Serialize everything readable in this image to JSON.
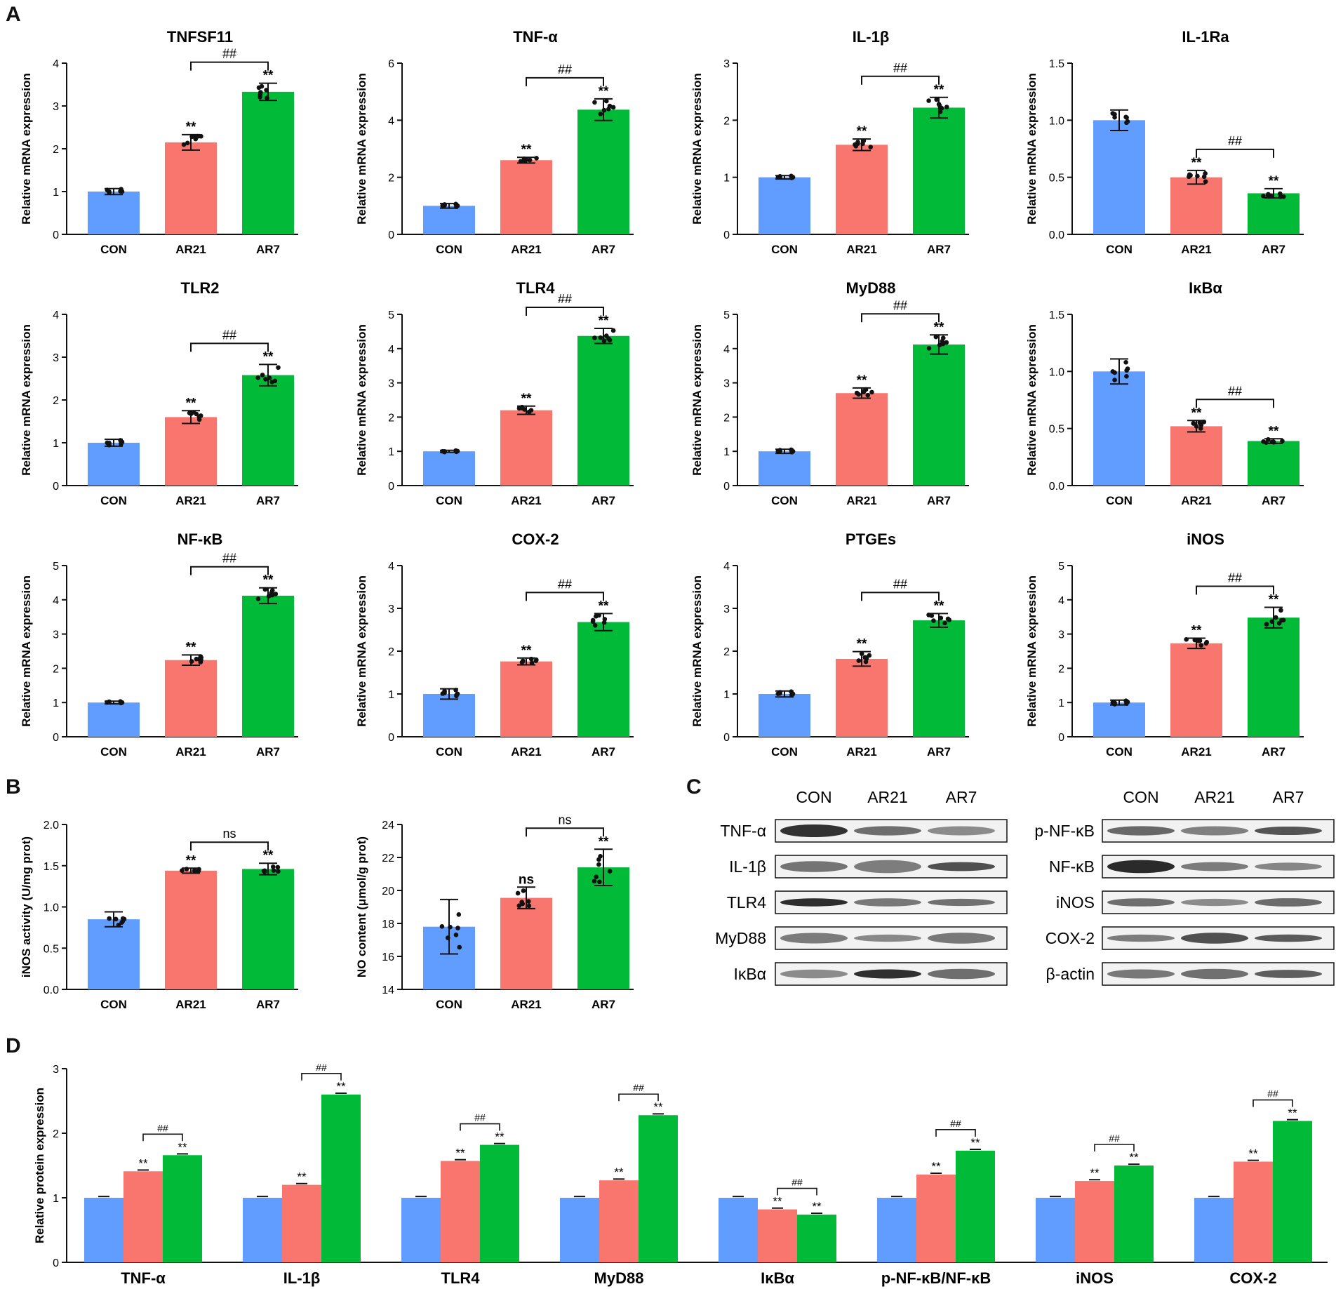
{
  "figure": {
    "panel_labels": {
      "a": "A",
      "b": "B",
      "c": "C",
      "d": "D"
    },
    "colors": {
      "CON": "#619cff",
      "AR21": "#f8766d",
      "AR7": "#00ba38",
      "axis": "#111111",
      "dot": "#111111"
    },
    "groups": [
      "CON",
      "AR21",
      "AR7"
    ],
    "ylabel_mrna": "Relative mRNA expression",
    "significance": {
      "double_star": "**",
      "double_hash": "##",
      "ns": "ns"
    }
  },
  "chart_data": [
    {
      "id": "TNFSF11",
      "type": "bar",
      "title": "TNFSF11",
      "ylabel": "Relative mRNA expression",
      "categories": [
        "CON",
        "AR21",
        "AR7"
      ],
      "values": [
        1.0,
        2.15,
        3.33
      ],
      "errors": [
        0.07,
        0.18,
        0.2
      ],
      "ylim": [
        0,
        4
      ],
      "ticks": [
        "0",
        "1",
        "2",
        "3",
        "4"
      ],
      "stars": [
        "",
        "**",
        "**"
      ],
      "bracket": {
        "from": 1,
        "to": 2,
        "label": "##"
      }
    },
    {
      "id": "TNF-a",
      "type": "bar",
      "title": "TNF-α",
      "ylabel": "Relative mRNA expression",
      "categories": [
        "CON",
        "AR21",
        "AR7"
      ],
      "values": [
        1.0,
        2.6,
        4.37
      ],
      "errors": [
        0.08,
        0.1,
        0.38
      ],
      "ylim": [
        0,
        6
      ],
      "ticks": [
        "0",
        "2",
        "4",
        "6"
      ],
      "stars": [
        "",
        "**",
        "**"
      ],
      "bracket": {
        "from": 1,
        "to": 2,
        "label": "##"
      }
    },
    {
      "id": "IL-1b",
      "type": "bar",
      "title": "IL-1β",
      "ylabel": "Relative mRNA expression",
      "categories": [
        "CON",
        "AR21",
        "AR7"
      ],
      "values": [
        1.0,
        1.57,
        2.22
      ],
      "errors": [
        0.03,
        0.1,
        0.18
      ],
      "ylim": [
        0,
        3
      ],
      "ticks": [
        "0",
        "1",
        "2",
        "3"
      ],
      "stars": [
        "",
        "**",
        "**"
      ],
      "bracket": {
        "from": 1,
        "to": 2,
        "label": "##"
      }
    },
    {
      "id": "IL-1Ra",
      "type": "bar",
      "title": "IL-1Ra",
      "ylabel": "Relative mRNA expression",
      "categories": [
        "CON",
        "AR21",
        "AR7"
      ],
      "values": [
        1.0,
        0.5,
        0.36
      ],
      "errors": [
        0.09,
        0.06,
        0.04
      ],
      "ylim": [
        0,
        1.5
      ],
      "ticks": [
        "0.0",
        "0.5",
        "1.0",
        "1.5"
      ],
      "stars": [
        "",
        "**",
        "**"
      ],
      "bracket": {
        "from": 1,
        "to": 2,
        "label": "##"
      }
    },
    {
      "id": "TLR2",
      "type": "bar",
      "title": "TLR2",
      "ylabel": "Relative mRNA expression",
      "categories": [
        "CON",
        "AR21",
        "AR7"
      ],
      "values": [
        1.0,
        1.6,
        2.58
      ],
      "errors": [
        0.08,
        0.15,
        0.25
      ],
      "ylim": [
        0,
        4
      ],
      "ticks": [
        "0",
        "1",
        "2",
        "3",
        "4"
      ],
      "stars": [
        "",
        "**",
        "**"
      ],
      "bracket": {
        "from": 1,
        "to": 2,
        "label": "##"
      }
    },
    {
      "id": "TLR4",
      "type": "bar",
      "title": "TLR4",
      "ylabel": "Relative mRNA expression",
      "categories": [
        "CON",
        "AR21",
        "AR7"
      ],
      "values": [
        1.0,
        2.2,
        4.37
      ],
      "errors": [
        0.03,
        0.12,
        0.22
      ],
      "ylim": [
        0,
        5
      ],
      "ticks": [
        "0",
        "1",
        "2",
        "3",
        "4",
        "5"
      ],
      "stars": [
        "",
        "**",
        "**"
      ],
      "bracket": {
        "from": 1,
        "to": 2,
        "label": "##"
      }
    },
    {
      "id": "MyD88",
      "type": "bar",
      "title": "MyD88",
      "ylabel": "Relative mRNA expression",
      "categories": [
        "CON",
        "AR21",
        "AR7"
      ],
      "values": [
        1.0,
        2.7,
        4.12
      ],
      "errors": [
        0.06,
        0.15,
        0.28
      ],
      "ylim": [
        0,
        5
      ],
      "ticks": [
        "0",
        "1",
        "2",
        "3",
        "4",
        "5"
      ],
      "stars": [
        "",
        "**",
        "**"
      ],
      "bracket": {
        "from": 1,
        "to": 2,
        "label": "##"
      }
    },
    {
      "id": "IkBa",
      "type": "bar",
      "title": "IκBα",
      "ylabel": "Relative mRNA expression",
      "categories": [
        "CON",
        "AR21",
        "AR7"
      ],
      "values": [
        1.0,
        0.52,
        0.39
      ],
      "errors": [
        0.11,
        0.05,
        0.02
      ],
      "ylim": [
        0,
        1.5
      ],
      "ticks": [
        "0.0",
        "0.5",
        "1.0",
        "1.5"
      ],
      "stars": [
        "",
        "**",
        "**"
      ],
      "bracket": {
        "from": 1,
        "to": 2,
        "label": "##"
      }
    },
    {
      "id": "NF-kB",
      "type": "bar",
      "title": "NF-κB",
      "ylabel": "Relative mRNA expression",
      "categories": [
        "CON",
        "AR21",
        "AR7"
      ],
      "values": [
        1.0,
        2.24,
        4.12
      ],
      "errors": [
        0.04,
        0.15,
        0.23
      ],
      "ylim": [
        0,
        5
      ],
      "ticks": [
        "0",
        "1",
        "2",
        "3",
        "4",
        "5"
      ],
      "stars": [
        "",
        "**",
        "**"
      ],
      "bracket": {
        "from": 1,
        "to": 2,
        "label": "##"
      }
    },
    {
      "id": "COX-2",
      "type": "bar",
      "title": "COX-2",
      "ylabel": "Relative mRNA expression",
      "categories": [
        "CON",
        "AR21",
        "AR7"
      ],
      "values": [
        1.0,
        1.76,
        2.68
      ],
      "errors": [
        0.12,
        0.08,
        0.2
      ],
      "ylim": [
        0,
        4
      ],
      "ticks": [
        "0",
        "1",
        "2",
        "3",
        "4"
      ],
      "stars": [
        "",
        "**",
        "**"
      ],
      "bracket": {
        "from": 1,
        "to": 2,
        "label": "##"
      }
    },
    {
      "id": "PTGEs",
      "type": "bar",
      "title": "PTGEs",
      "ylabel": "Relative mRNA expression",
      "categories": [
        "CON",
        "AR21",
        "AR7"
      ],
      "values": [
        1.0,
        1.82,
        2.72
      ],
      "errors": [
        0.07,
        0.17,
        0.16
      ],
      "ylim": [
        0,
        4
      ],
      "ticks": [
        "0",
        "1",
        "2",
        "3",
        "4"
      ],
      "stars": [
        "",
        "**",
        "**"
      ],
      "bracket": {
        "from": 1,
        "to": 2,
        "label": "##"
      }
    },
    {
      "id": "iNOS",
      "type": "bar",
      "title": "iNOS",
      "ylabel": "Relative mRNA expression",
      "categories": [
        "CON",
        "AR21",
        "AR7"
      ],
      "values": [
        1.0,
        2.73,
        3.48
      ],
      "errors": [
        0.07,
        0.15,
        0.3
      ],
      "ylim": [
        0,
        5
      ],
      "ticks": [
        "0",
        "1",
        "2",
        "3",
        "4",
        "5"
      ],
      "stars": [
        "",
        "**",
        "**"
      ],
      "bracket": {
        "from": 1,
        "to": 2,
        "label": "##"
      }
    },
    {
      "id": "iNOS-activity",
      "type": "bar",
      "title": "",
      "ylabel": "iNOS activity (U/mg prot)",
      "categories": [
        "CON",
        "AR21",
        "AR7"
      ],
      "values": [
        0.85,
        1.44,
        1.46
      ],
      "errors": [
        0.09,
        0.03,
        0.07
      ],
      "ylim": [
        0,
        2
      ],
      "ticks": [
        "0.0",
        "0.5",
        "1.0",
        "1.5",
        "2.0"
      ],
      "stars": [
        "",
        "**",
        "**"
      ],
      "bracket": {
        "from": 1,
        "to": 2,
        "label": "ns"
      }
    },
    {
      "id": "NO-content",
      "type": "bar",
      "title": "",
      "ylabel": "NO content (μmol/g prot)",
      "categories": [
        "CON",
        "AR21",
        "AR7"
      ],
      "values": [
        17.8,
        19.55,
        21.4
      ],
      "errors": [
        1.65,
        0.65,
        1.1
      ],
      "ylim": [
        14,
        24
      ],
      "ticks": [
        "14",
        "16",
        "18",
        "20",
        "22",
        "24"
      ],
      "stars": [
        "",
        "ns",
        "**"
      ],
      "bracket": {
        "from": 1,
        "to": 2,
        "label": "ns"
      }
    },
    {
      "id": "protein-D",
      "type": "bar",
      "title": "",
      "ylabel": "Relative protein expression",
      "categories": [
        "TNF-α",
        "IL-1β",
        "TLR4",
        "MyD88",
        "IκBα",
        "p-NF-κB/NF-κB",
        "iNOS",
        "COX-2"
      ],
      "series": [
        {
          "name": "CON",
          "values": [
            1.0,
            1.0,
            1.0,
            1.0,
            1.0,
            1.0,
            1.0,
            1.0
          ]
        },
        {
          "name": "AR21",
          "values": [
            1.41,
            1.2,
            1.57,
            1.27,
            0.82,
            1.36,
            1.26,
            1.56
          ]
        },
        {
          "name": "AR7",
          "values": [
            1.66,
            2.6,
            1.82,
            2.28,
            0.74,
            1.73,
            1.5,
            2.19
          ]
        }
      ],
      "ylim": [
        0,
        3
      ],
      "ticks": [
        "0",
        "1",
        "2",
        "3"
      ],
      "stars": "**",
      "bracket_label": "##"
    }
  ],
  "western_blot": {
    "left": {
      "columns": [
        "CON",
        "AR21",
        "AR7"
      ],
      "rows": [
        "TNF-α",
        "IL-1β",
        "TLR4",
        "MyD88",
        "IκBα"
      ]
    },
    "right": {
      "columns": [
        "CON",
        "AR21",
        "AR7"
      ],
      "rows": [
        "p-NF-κB",
        "NF-κB",
        "iNOS",
        "COX-2",
        "β-actin"
      ]
    }
  }
}
